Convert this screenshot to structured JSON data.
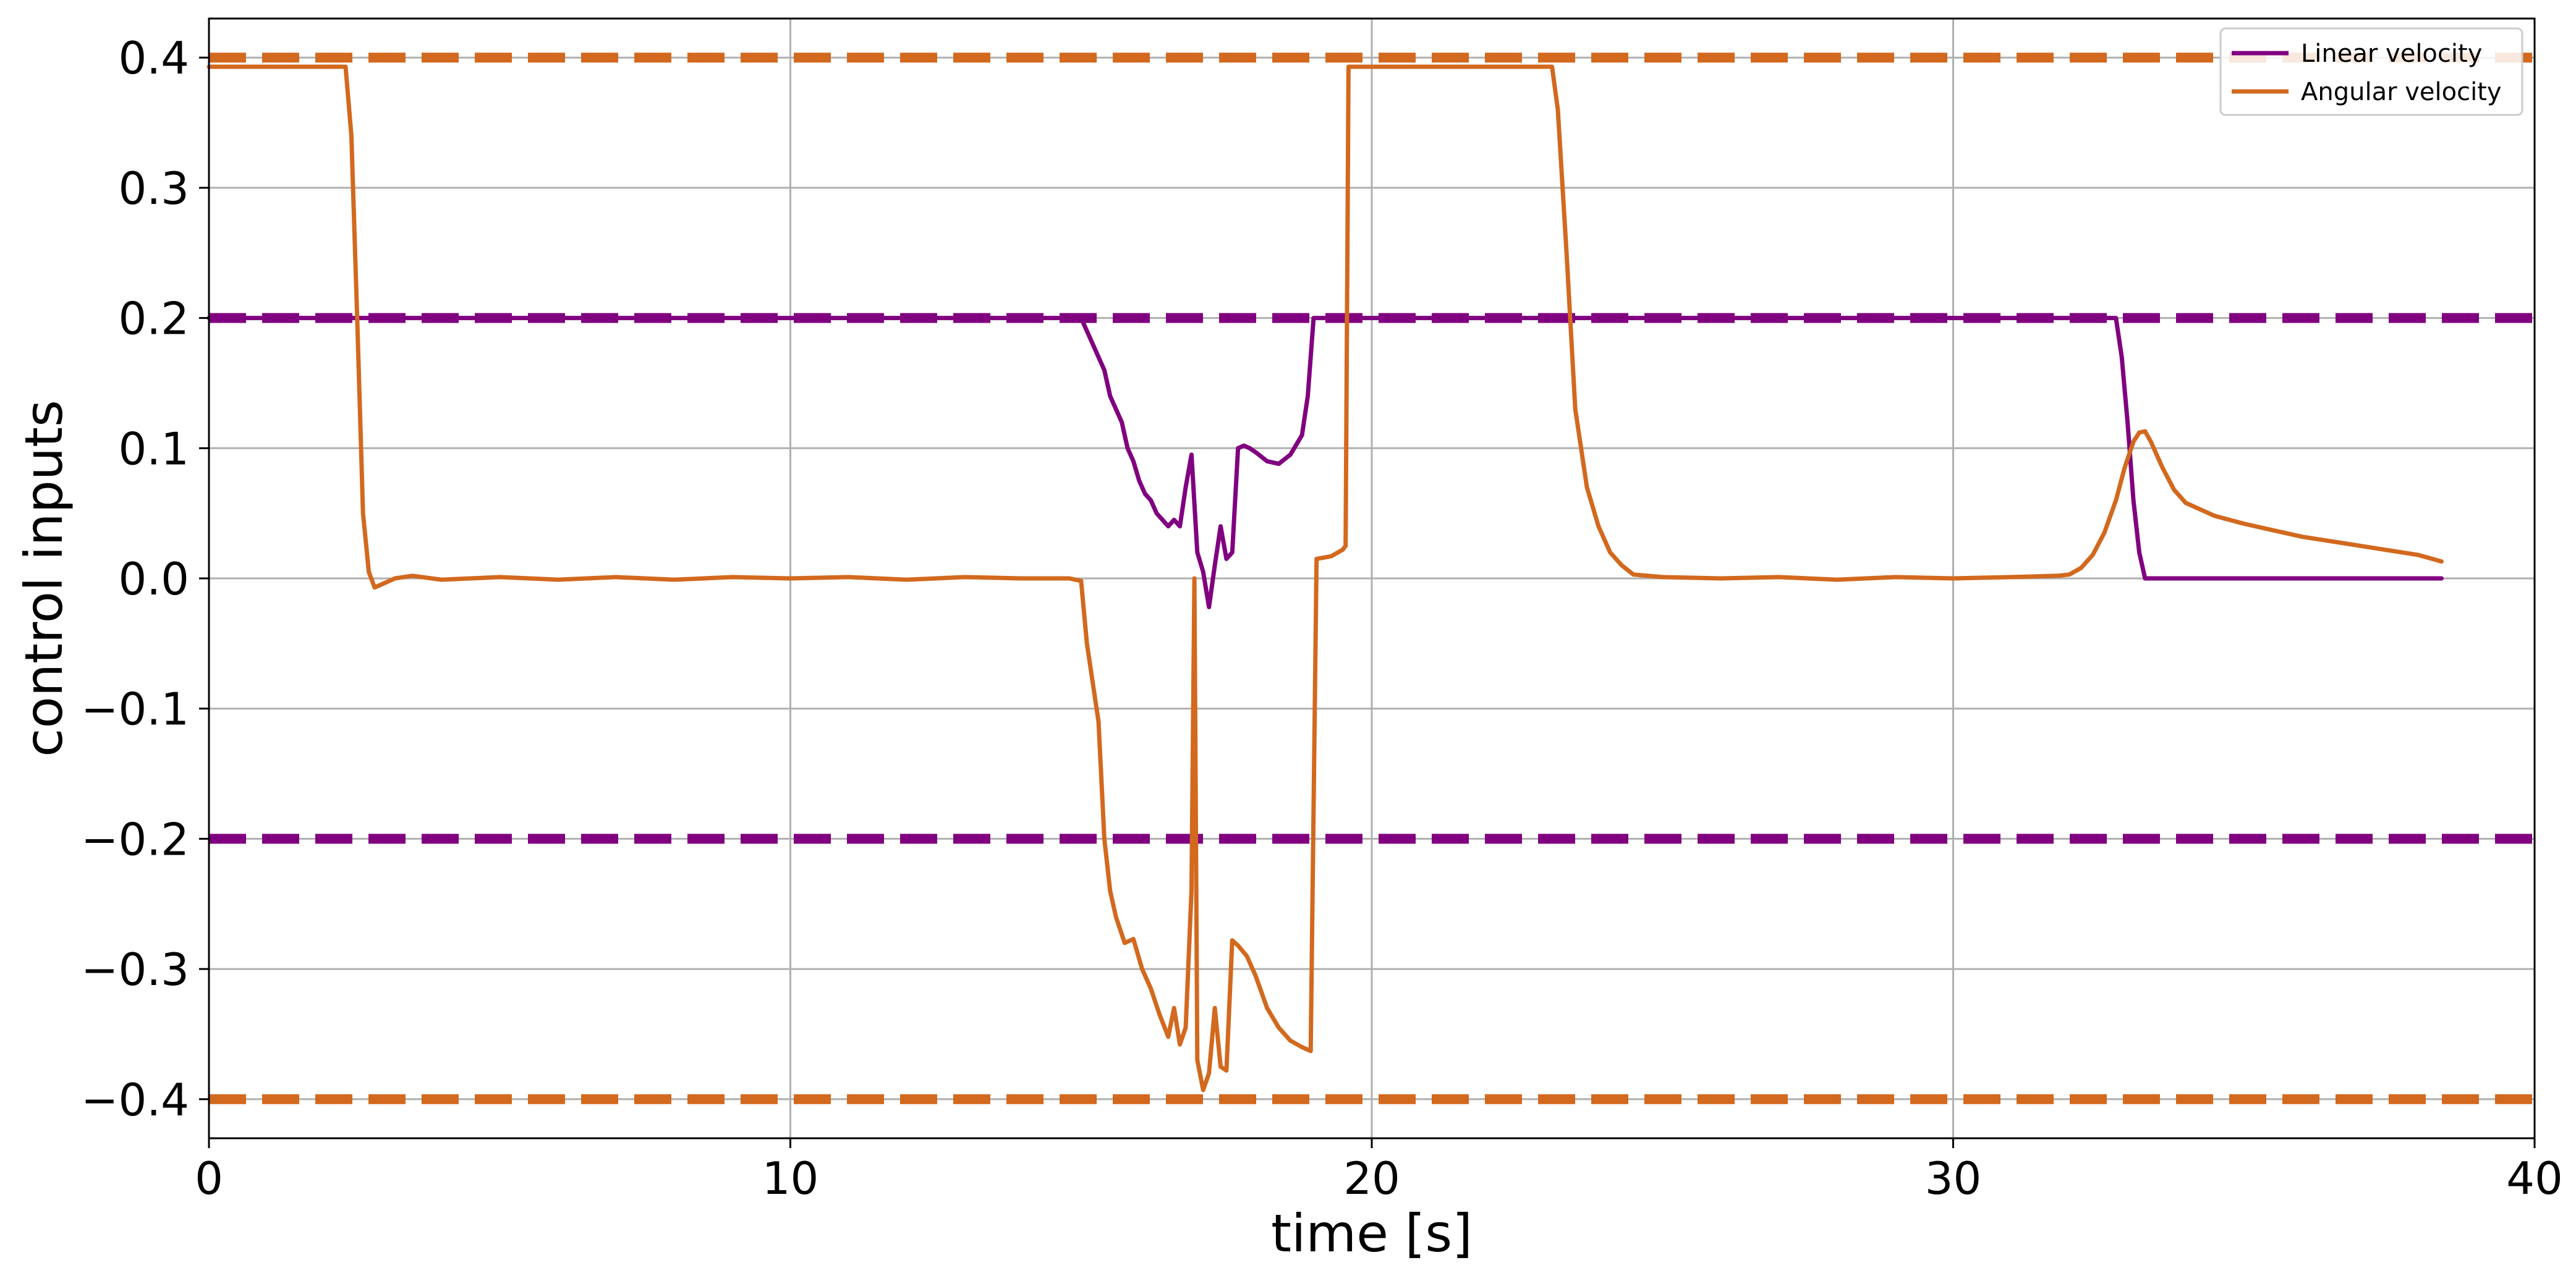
{
  "chart_data": {
    "type": "line",
    "xlabel": "time [s]",
    "ylabel": "control inputs",
    "xlim": [
      0,
      40
    ],
    "ylim": [
      -0.43,
      0.43
    ],
    "xticks": [
      0,
      10,
      20,
      30,
      40
    ],
    "xtick_labels": [
      "0",
      "10",
      "20",
      "30",
      "40"
    ],
    "yticks": [
      -0.4,
      -0.3,
      -0.2,
      -0.1,
      0.0,
      0.1,
      0.2,
      0.3,
      0.4
    ],
    "ytick_labels": [
      "−0.4",
      "−0.3",
      "−0.2",
      "−0.1",
      "0.0",
      "0.1",
      "0.2",
      "0.3",
      "0.4"
    ],
    "grid": true,
    "legend_position": "top-right",
    "series": [
      {
        "name": "Linear velocity",
        "color": "#800080",
        "x": [
          0,
          15.0,
          15.2,
          15.4,
          15.5,
          15.6,
          15.7,
          15.8,
          15.9,
          16.0,
          16.1,
          16.2,
          16.3,
          16.4,
          16.5,
          16.6,
          16.7,
          16.8,
          16.9,
          17.0,
          17.1,
          17.2,
          17.3,
          17.4,
          17.5,
          17.6,
          17.7,
          17.8,
          17.9,
          18.0,
          18.2,
          18.4,
          18.6,
          18.8,
          18.9,
          19.0,
          19.5,
          25.0,
          32.8,
          32.9,
          33.0,
          33.1,
          33.2,
          33.3,
          34.0,
          38.4
        ],
        "y": [
          0.2,
          0.2,
          0.18,
          0.16,
          0.14,
          0.13,
          0.12,
          0.1,
          0.09,
          0.075,
          0.065,
          0.06,
          0.05,
          0.045,
          0.04,
          0.045,
          0.04,
          0.07,
          0.095,
          0.02,
          0.005,
          -0.022,
          0.01,
          0.04,
          0.015,
          0.02,
          0.1,
          0.102,
          0.1,
          0.097,
          0.09,
          0.088,
          0.095,
          0.11,
          0.14,
          0.2,
          0.2,
          0.2,
          0.2,
          0.17,
          0.12,
          0.06,
          0.02,
          0.0,
          0.0,
          0.0
        ]
      },
      {
        "name": "Angular velocity",
        "color": "#D2691E",
        "x": [
          0,
          2.35,
          2.45,
          2.55,
          2.65,
          2.75,
          2.85,
          3.0,
          3.2,
          3.5,
          4.0,
          5.0,
          6.0,
          7.0,
          8.0,
          9.0,
          10.0,
          11.0,
          12.0,
          13.0,
          14.0,
          14.8,
          15.0,
          15.1,
          15.2,
          15.3,
          15.4,
          15.5,
          15.6,
          15.75,
          15.9,
          16.05,
          16.2,
          16.35,
          16.5,
          16.6,
          16.7,
          16.8,
          16.9,
          16.95,
          17.0,
          17.1,
          17.2,
          17.3,
          17.4,
          17.5,
          17.6,
          17.7,
          17.85,
          18.0,
          18.2,
          18.4,
          18.6,
          18.8,
          18.95,
          19.05,
          19.3,
          19.5,
          19.55,
          19.6,
          21.0,
          22.0,
          23.1,
          23.2,
          23.35,
          23.5,
          23.7,
          23.9,
          24.1,
          24.3,
          24.5,
          25.0,
          26.0,
          27.0,
          28.0,
          29.0,
          30.0,
          31.0,
          31.8,
          32.0,
          32.2,
          32.4,
          32.6,
          32.8,
          32.95,
          33.1,
          33.2,
          33.3,
          33.4,
          33.6,
          33.8,
          34.0,
          34.5,
          35.0,
          36.0,
          37.0,
          38.0,
          38.4
        ],
        "y": [
          0.393,
          0.393,
          0.34,
          0.2,
          0.05,
          0.005,
          -0.007,
          -0.004,
          0.0,
          0.002,
          -0.001,
          0.001,
          -0.001,
          0.001,
          -0.001,
          0.001,
          0.0,
          0.001,
          -0.001,
          0.001,
          0.0,
          0.0,
          -0.002,
          -0.05,
          -0.08,
          -0.11,
          -0.2,
          -0.24,
          -0.26,
          -0.28,
          -0.277,
          -0.3,
          -0.315,
          -0.335,
          -0.352,
          -0.33,
          -0.358,
          -0.345,
          -0.24,
          0.0,
          -0.37,
          -0.393,
          -0.38,
          -0.33,
          -0.375,
          -0.378,
          -0.278,
          -0.282,
          -0.29,
          -0.305,
          -0.33,
          -0.345,
          -0.355,
          -0.36,
          -0.363,
          0.015,
          0.017,
          0.022,
          0.025,
          0.393,
          0.393,
          0.393,
          0.393,
          0.36,
          0.25,
          0.13,
          0.07,
          0.04,
          0.02,
          0.01,
          0.003,
          0.001,
          0.0,
          0.001,
          -0.001,
          0.001,
          0.0,
          0.001,
          0.002,
          0.003,
          0.008,
          0.018,
          0.035,
          0.06,
          0.085,
          0.105,
          0.112,
          0.113,
          0.105,
          0.085,
          0.068,
          0.058,
          0.048,
          0.042,
          0.032,
          0.025,
          0.018,
          0.013
        ]
      }
    ],
    "reference_lines": [
      {
        "y": 0.4,
        "color": "#D2691E",
        "style": "dashed"
      },
      {
        "y": -0.4,
        "color": "#D2691E",
        "style": "dashed"
      },
      {
        "y": 0.2,
        "color": "#800080",
        "style": "dashed"
      },
      {
        "y": -0.2,
        "color": "#800080",
        "style": "dashed"
      }
    ]
  }
}
